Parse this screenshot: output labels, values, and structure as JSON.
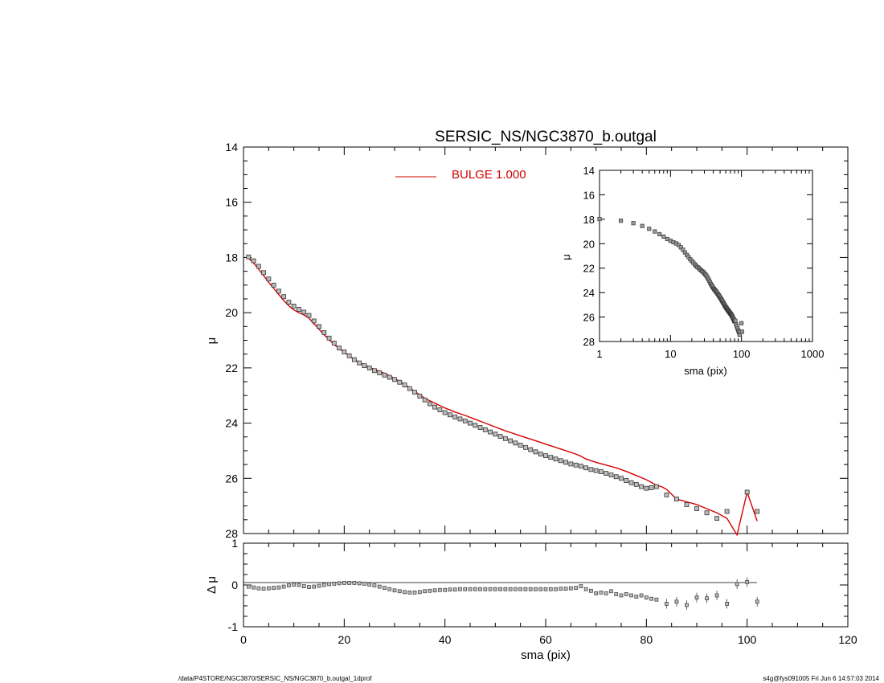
{
  "chart_data": [
    {
      "type": "scatter",
      "title": "SERSIC_NS/NGC3870_b.outgal",
      "xlabel": "",
      "ylabel": "μ",
      "xlim": [
        0,
        120
      ],
      "ylim": [
        28,
        14
      ],
      "x_ticks": [
        0,
        20,
        40,
        60,
        80,
        100,
        120
      ],
      "y_ticks": [
        14,
        16,
        18,
        20,
        22,
        24,
        26,
        28
      ],
      "legend": {
        "label": "BULGE  1.000",
        "color": "#d40000",
        "placement": "top-center"
      },
      "series": [
        {
          "kind": "points",
          "x": [
            1,
            2,
            3,
            4,
            5,
            6,
            7,
            8,
            9,
            10,
            11,
            12,
            13,
            14,
            15,
            16,
            17,
            18,
            19,
            20,
            21,
            22,
            23,
            24,
            25,
            26,
            27,
            28,
            29,
            30,
            31,
            32,
            33,
            34,
            35,
            36,
            37,
            38,
            39,
            40,
            41,
            42,
            43,
            44,
            45,
            46,
            47,
            48,
            49,
            50,
            51,
            52,
            53,
            54,
            55,
            56,
            57,
            58,
            59,
            60,
            61,
            62,
            63,
            64,
            65,
            66,
            67,
            68,
            69,
            70,
            71,
            72,
            73,
            74,
            75,
            76,
            77,
            78,
            79,
            80,
            81,
            82,
            84,
            86,
            88,
            90,
            92,
            94,
            96,
            100,
            102
          ],
          "y": [
            17.98,
            18.12,
            18.32,
            18.55,
            18.78,
            19.0,
            19.22,
            19.42,
            19.62,
            19.76,
            19.88,
            19.98,
            20.1,
            20.3,
            20.5,
            20.72,
            20.92,
            21.1,
            21.28,
            21.42,
            21.56,
            21.7,
            21.82,
            21.92,
            22.0,
            22.1,
            22.18,
            22.26,
            22.34,
            22.42,
            22.52,
            22.62,
            22.75,
            22.88,
            23.02,
            23.16,
            23.3,
            23.42,
            23.52,
            23.62,
            23.7,
            23.78,
            23.85,
            23.92,
            24.0,
            24.08,
            24.16,
            24.24,
            24.32,
            24.4,
            24.48,
            24.56,
            24.64,
            24.72,
            24.8,
            24.88,
            24.96,
            25.04,
            25.12,
            25.18,
            25.24,
            25.3,
            25.36,
            25.42,
            25.48,
            25.52,
            25.56,
            25.62,
            25.68,
            25.72,
            25.76,
            25.82,
            25.88,
            25.94,
            26.0,
            26.08,
            26.16,
            26.22,
            26.3,
            26.36,
            26.34,
            26.3,
            26.6,
            26.75,
            26.95,
            27.1,
            27.25,
            27.45,
            27.2,
            26.5,
            27.2
          ]
        },
        {
          "kind": "line",
          "name": "BULGE  1.000",
          "color": "#d40000",
          "x": [
            1,
            2,
            3,
            4,
            5,
            6,
            7,
            8,
            9,
            10,
            11,
            12,
            13,
            14,
            15,
            16,
            17,
            18,
            19,
            20,
            22,
            24,
            26,
            28,
            30,
            32,
            34,
            36,
            38,
            40,
            42,
            44,
            46,
            48,
            50,
            52,
            54,
            56,
            58,
            60,
            62,
            64,
            66,
            67,
            68,
            70,
            72,
            74,
            76,
            78,
            80,
            82,
            83,
            84,
            86,
            88,
            90,
            92,
            94,
            96,
            98,
            100,
            102
          ],
          "y": [
            18.03,
            18.2,
            18.42,
            18.66,
            18.9,
            19.12,
            19.34,
            19.56,
            19.75,
            19.9,
            20.0,
            20.08,
            20.2,
            20.4,
            20.6,
            20.8,
            20.98,
            21.15,
            21.3,
            21.44,
            21.7,
            21.9,
            22.05,
            22.2,
            22.38,
            22.6,
            22.85,
            23.1,
            23.28,
            23.45,
            23.6,
            23.72,
            23.86,
            24.0,
            24.14,
            24.28,
            24.4,
            24.52,
            24.64,
            24.76,
            24.88,
            25.0,
            25.12,
            25.2,
            25.3,
            25.42,
            25.52,
            25.62,
            25.75,
            25.9,
            26.05,
            26.25,
            26.3,
            26.4,
            26.75,
            26.85,
            26.95,
            27.1,
            27.25,
            27.45,
            28.05,
            26.5,
            27.55
          ]
        }
      ]
    },
    {
      "type": "scatter",
      "title": "",
      "xlabel": "sma (pix)",
      "ylabel": "μ",
      "x_scale": "log",
      "xlim": [
        1,
        1000
      ],
      "ylim": [
        28,
        14
      ],
      "x_ticks": [
        1,
        10,
        100,
        1000
      ],
      "y_ticks": [
        14,
        16,
        18,
        20,
        22,
        24,
        26,
        28
      ],
      "placement": "top-right inset"
    },
    {
      "type": "scatter",
      "title": "",
      "xlabel": "sma (pix)",
      "ylabel": "Δ μ",
      "xlim": [
        0,
        120
      ],
      "ylim": [
        -1,
        1
      ],
      "x_ticks": [
        0,
        20,
        40,
        60,
        80,
        100,
        120
      ],
      "y_ticks": [
        -1,
        0,
        1
      ],
      "series": [
        {
          "kind": "points",
          "x": [
            1,
            2,
            3,
            4,
            5,
            6,
            7,
            8,
            9,
            10,
            11,
            12,
            13,
            14,
            15,
            16,
            17,
            18,
            19,
            20,
            21,
            22,
            23,
            24,
            25,
            26,
            27,
            28,
            29,
            30,
            31,
            32,
            33,
            34,
            35,
            36,
            37,
            38,
            39,
            40,
            41,
            42,
            43,
            44,
            45,
            46,
            47,
            48,
            49,
            50,
            51,
            52,
            53,
            54,
            55,
            56,
            57,
            58,
            59,
            60,
            61,
            62,
            63,
            64,
            65,
            66,
            67,
            68,
            69,
            70,
            71,
            72,
            73,
            74,
            75,
            76,
            77,
            78,
            79,
            80,
            81,
            82,
            84,
            86,
            88,
            90,
            92,
            94,
            96,
            98,
            100,
            102
          ],
          "y": [
            -0.04,
            -0.06,
            -0.08,
            -0.09,
            -0.08,
            -0.07,
            -0.06,
            -0.04,
            -0.01,
            0.01,
            0.0,
            -0.03,
            -0.05,
            -0.04,
            -0.02,
            0.0,
            0.02,
            0.03,
            0.04,
            0.05,
            0.05,
            0.05,
            0.04,
            0.03,
            0.01,
            -0.01,
            -0.04,
            -0.07,
            -0.1,
            -0.13,
            -0.15,
            -0.17,
            -0.18,
            -0.18,
            -0.17,
            -0.15,
            -0.14,
            -0.13,
            -0.12,
            -0.12,
            -0.11,
            -0.11,
            -0.1,
            -0.1,
            -0.1,
            -0.1,
            -0.1,
            -0.1,
            -0.1,
            -0.1,
            -0.1,
            -0.1,
            -0.1,
            -0.1,
            -0.1,
            -0.1,
            -0.1,
            -0.1,
            -0.1,
            -0.1,
            -0.1,
            -0.1,
            -0.09,
            -0.09,
            -0.08,
            -0.07,
            -0.03,
            -0.1,
            -0.14,
            -0.2,
            -0.18,
            -0.2,
            -0.15,
            -0.22,
            -0.25,
            -0.22,
            -0.25,
            -0.28,
            -0.25,
            -0.3,
            -0.33,
            -0.35,
            -0.45,
            -0.4,
            -0.48,
            -0.3,
            -0.32,
            -0.25,
            -0.45,
            0.02,
            0.07,
            -0.4
          ]
        }
      ]
    }
  ],
  "footer": {
    "left": "/data/P4STORE/NGC3870/SERSIC_NS/NGC3870_b.outgal_1dprof",
    "right": "s4g@fys091005  Fri Jun  6 14:57:03 2014"
  }
}
